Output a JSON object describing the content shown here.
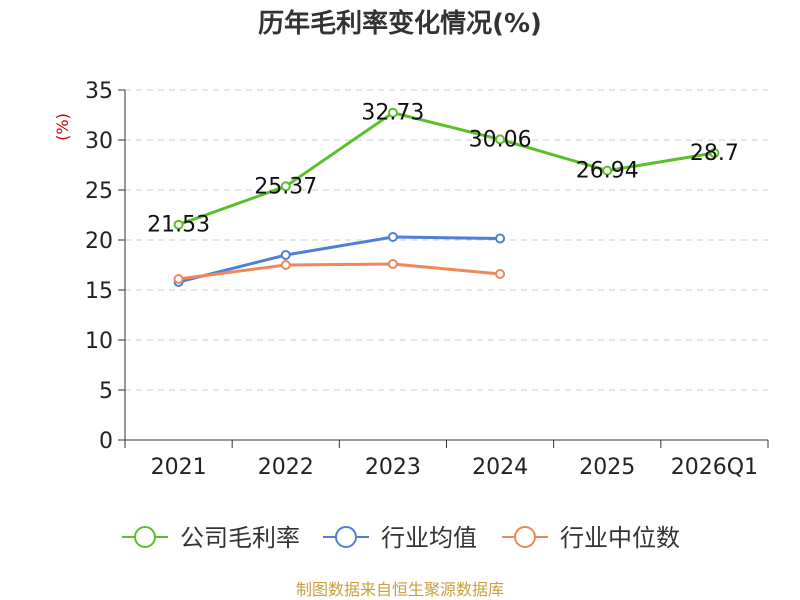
{
  "chart_data": {
    "type": "line",
    "title": "历年毛利率变化情况(%)",
    "ylabel": "(%)",
    "xlabel": "",
    "categories": [
      "2021",
      "2022",
      "2023",
      "2024",
      "2025",
      "2026Q1"
    ],
    "ylim": [
      0,
      35
    ],
    "yticks": [
      0,
      5,
      10,
      15,
      20,
      25,
      30,
      35
    ],
    "grid": true,
    "legend_position": "bottom",
    "series": [
      {
        "name": "公司毛利率",
        "color": "#5cbf2a",
        "labeled": true,
        "values": [
          21.53,
          25.37,
          32.73,
          30.06,
          26.94,
          28.7
        ],
        "labels": [
          "21.53",
          "25.37",
          "32.73",
          "30.06",
          "26.94",
          "28.7"
        ]
      },
      {
        "name": "行业均值",
        "color": "#4f7fd6",
        "labeled": false,
        "values": [
          15.8,
          18.5,
          20.3,
          20.15,
          null,
          null
        ]
      },
      {
        "name": "行业中位数",
        "color": "#f0875a",
        "labeled": false,
        "values": [
          16.1,
          17.5,
          17.6,
          16.6,
          null,
          null
        ]
      }
    ]
  },
  "footer": {
    "source": "制图数据来自恒生聚源数据库"
  }
}
